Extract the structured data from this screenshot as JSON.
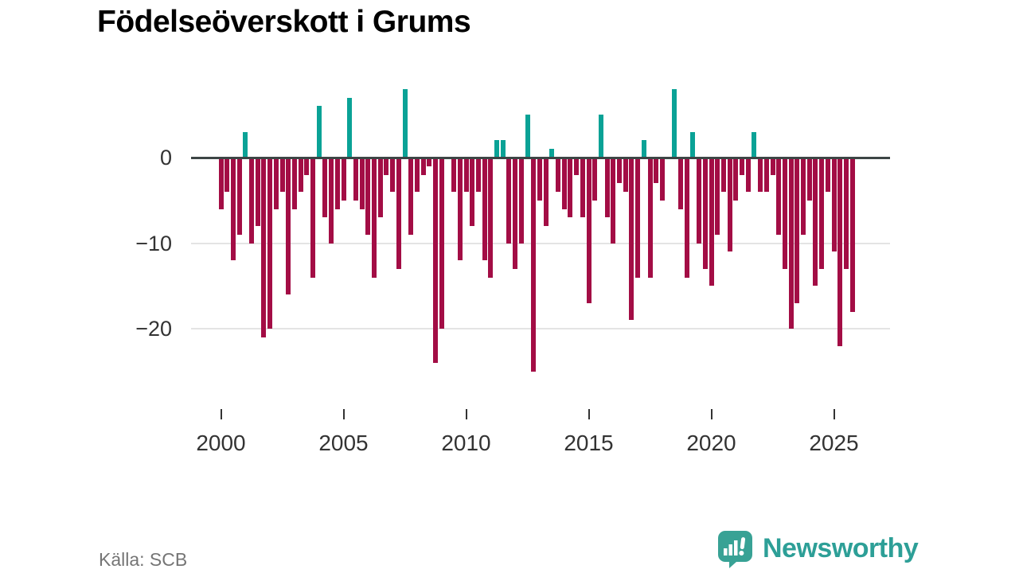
{
  "title": "Födelseöverskott i Grums",
  "source": "Källa: SCB",
  "branding": {
    "name": "Newsworthy",
    "icon": "speech-bubble-bar-chart",
    "color": "#2d9f97",
    "icon_color": "#38a295"
  },
  "y_axis": {
    "ticks": [
      {
        "label": "0",
        "value": 0
      },
      {
        "label": "−10",
        "value": -10
      },
      {
        "label": "−20",
        "value": -20
      }
    ]
  },
  "x_axis": {
    "ticks": [
      {
        "label": "2000",
        "index": 0
      },
      {
        "label": "2005",
        "index": 20
      },
      {
        "label": "2010",
        "index": 40
      },
      {
        "label": "2015",
        "index": 60
      },
      {
        "label": "2020",
        "index": 80
      },
      {
        "label": "2025",
        "index": 100
      }
    ]
  },
  "chart_data": {
    "type": "bar",
    "title": "Födelseöverskott i Grums",
    "unit": "persons per quarter",
    "frequency": "quarterly",
    "start_year": 2000,
    "start_quarter": 1,
    "end_year": 2025,
    "end_quarter": 4,
    "ylim": [
      -27,
      9
    ],
    "grid": "horizontal",
    "legend": "none",
    "colors": {
      "positive": "#0aa296",
      "negative": "#a30d45"
    },
    "series": [
      {
        "name": "Födelseöverskott",
        "values": [
          -6,
          -4,
          -12,
          -9,
          3,
          -10,
          -8,
          -21,
          -20,
          -6,
          -4,
          -16,
          -6,
          -4,
          -2,
          -14,
          6,
          -7,
          -10,
          -6,
          -5,
          7,
          -5,
          -6,
          -9,
          -14,
          -7,
          -2,
          -4,
          -13,
          8,
          -9,
          -4,
          -2,
          -1,
          -24,
          -20,
          0,
          -4,
          -12,
          -4,
          -8,
          -4,
          -12,
          -14,
          2,
          2,
          -10,
          -13,
          -10,
          5,
          -25,
          -5,
          -8,
          1,
          -4,
          -6,
          -7,
          -2,
          -7,
          -17,
          -5,
          5,
          -7,
          -10,
          -3,
          -4,
          -19,
          -14,
          2,
          -14,
          -3,
          -5,
          0,
          8,
          -6,
          -14,
          3,
          -10,
          -13,
          -15,
          -9,
          -4,
          -11,
          -5,
          -2,
          -4,
          3,
          -4,
          -4,
          -2,
          -9,
          -13,
          -20,
          -17,
          -9,
          -5,
          -15,
          -13,
          -4,
          -11,
          -22,
          -13,
          -18
        ]
      }
    ]
  }
}
